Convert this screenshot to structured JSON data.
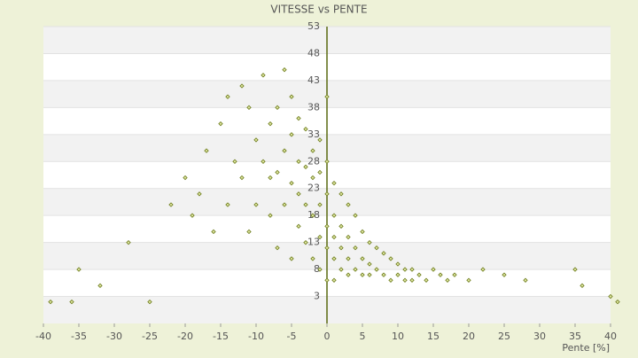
{
  "chart_data": {
    "type": "scatter",
    "title": "VITESSE vs PENTE",
    "x_label": "Pente [%]",
    "color": "#6b7a1a",
    "x": [
      -39,
      -36,
      -35,
      -32,
      -28,
      -25,
      -22,
      -20,
      -19,
      -18,
      -17,
      -16,
      -15,
      -14,
      -14,
      -13,
      -12,
      -12,
      -11,
      -11,
      -10,
      -10,
      -9,
      -9,
      -8,
      -8,
      -8,
      -7,
      -7,
      -7,
      -6,
      -6,
      -6,
      -5,
      -5,
      -5,
      -5,
      -4,
      -4,
      -4,
      -4,
      -3,
      -3,
      -3,
      -3,
      -2,
      -2,
      -2,
      -2,
      -1,
      -1,
      -1,
      -1,
      -1,
      0,
      0,
      0,
      0,
      0,
      0,
      1,
      1,
      1,
      1,
      1,
      2,
      2,
      2,
      2,
      3,
      3,
      3,
      3,
      4,
      4,
      4,
      5,
      5,
      5,
      6,
      6,
      6,
      7,
      7,
      8,
      8,
      9,
      9,
      10,
      10,
      11,
      11,
      12,
      12,
      13,
      14,
      15,
      16,
      17,
      18,
      20,
      22,
      25,
      28,
      35,
      36,
      40,
      41
    ],
    "values": [
      2,
      2,
      8,
      5,
      13,
      2,
      20,
      25,
      18,
      22,
      30,
      15,
      35,
      40,
      20,
      28,
      42,
      25,
      38,
      15,
      32,
      20,
      44,
      28,
      35,
      18,
      25,
      38,
      26,
      12,
      45,
      30,
      20,
      40,
      33,
      24,
      10,
      36,
      28,
      22,
      16,
      34,
      27,
      20,
      13,
      30,
      25,
      18,
      10,
      32,
      26,
      20,
      14,
      8,
      28,
      22,
      16,
      12,
      6,
      40,
      24,
      18,
      14,
      10,
      6,
      22,
      16,
      12,
      8,
      20,
      14,
      10,
      7,
      18,
      12,
      8,
      15,
      10,
      7,
      13,
      9,
      7,
      12,
      8,
      11,
      7,
      10,
      6,
      9,
      7,
      8,
      6,
      8,
      6,
      7,
      6,
      8,
      7,
      6,
      7,
      6,
      8,
      7,
      6,
      8,
      5,
      3,
      2
    ],
    "xlim": [
      -40,
      40
    ],
    "xticks": [
      -40,
      -35,
      -30,
      -25,
      -20,
      -15,
      -10,
      -5,
      0,
      5,
      10,
      15,
      20,
      25,
      30,
      35,
      40
    ],
    "ylim": [
      -2,
      53
    ],
    "yticks": [
      3,
      8,
      13,
      18,
      23,
      28,
      33,
      38,
      43,
      48,
      53
    ],
    "grid": true
  }
}
